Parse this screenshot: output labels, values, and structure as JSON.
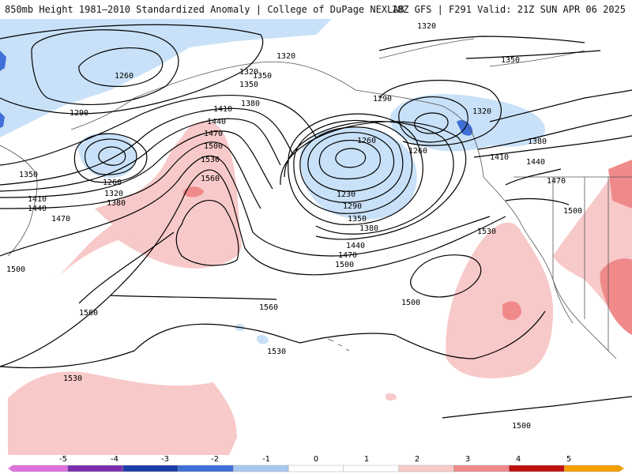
{
  "header": {
    "title": "850mb Height 1981–2010 Standardized Anomaly | College of DuPage NEXLAB",
    "run_info": "18Z GFS | F291 Valid: 21Z SUN APR 06 2025"
  },
  "colors": {
    "neg_2": "#c9e1f8",
    "neg_3": "#86b2ee",
    "neg_4": "#3f6fd8",
    "pos_2": "#f8c9c9",
    "pos_3": "#f08a8a",
    "pos_4": "#e05050",
    "contour": "#000000",
    "coast": "#555555"
  },
  "contour_labels": [
    "1320",
    "1260",
    "1350",
    "1290",
    "1320",
    "1350",
    "1380",
    "1410",
    "1440",
    "1470",
    "1500",
    "1530",
    "1560",
    "1350",
    "1260",
    "1320",
    "1380",
    "1410",
    "1440",
    "1470",
    "1500",
    "1560",
    "1560",
    "1530",
    "1530",
    "1500",
    "1290",
    "1260",
    "1260",
    "1230",
    "1290",
    "1350",
    "1380",
    "1440",
    "1470",
    "1500",
    "1320",
    "1350",
    "1380",
    "1410",
    "1440",
    "1470",
    "1500",
    "1530",
    "1320",
    "1500"
  ],
  "colorbar": {
    "ticks": [
      "-5",
      "-4",
      "-3",
      "-2",
      "-1",
      "0",
      "1",
      "2",
      "3",
      "4",
      "5"
    ],
    "colors": [
      "#e070e0",
      "#7a2fb0",
      "#1b3ea8",
      "#3f6fd8",
      "#a6c8f0",
      "#ffffff",
      "#ffffff",
      "#f8c9c9",
      "#f08a8a",
      "#c01010",
      "#f5a000"
    ]
  }
}
